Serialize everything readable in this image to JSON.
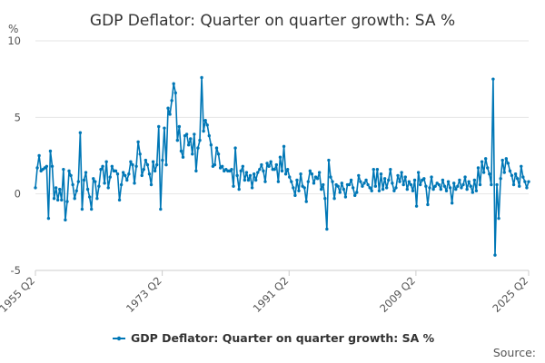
{
  "chart_data": {
    "type": "line",
    "title": "GDP Deflator: Quarter on quarter growth: SA %",
    "ylabel": "%",
    "xlabel": "",
    "ylim": [
      -5,
      10
    ],
    "y_ticks": [
      -5,
      0,
      5,
      10
    ],
    "x_ticks": [
      "1955 Q2",
      "1973 Q2",
      "1991 Q2",
      "2009 Q2",
      "2025 Q2"
    ],
    "grid": true,
    "legend_position": "bottom-center",
    "colors": {
      "series": "#0077b6",
      "grid": "#e6e6e6",
      "text": "#333333"
    },
    "series": [
      {
        "name": "GDP Deflator: Quarter on quarter growth: SA %",
        "start": "1955 Q2",
        "values": [
          0.4,
          1.7,
          2.5,
          1.5,
          1.6,
          1.7,
          1.8,
          -1.6,
          2.8,
          1.8,
          -0.3,
          0.4,
          -0.4,
          0.3,
          -0.4,
          1.6,
          -1.7,
          -0.5,
          1.5,
          1.2,
          0.6,
          -0.3,
          0.2,
          0.8,
          4.0,
          -1.0,
          0.9,
          1.4,
          0.3,
          -0.2,
          -1.0,
          1.0,
          0.8,
          -0.3,
          0.5,
          1.6,
          1.8,
          0.7,
          2.1,
          0.4,
          1.1,
          1.8,
          1.5,
          1.5,
          1.3,
          -0.4,
          0.6,
          1.4,
          1.2,
          0.9,
          1.3,
          2.1,
          1.9,
          0.7,
          1.8,
          3.4,
          2.6,
          1.2,
          1.6,
          2.2,
          1.9,
          1.3,
          0.6,
          2.1,
          1.5,
          1.9,
          4.4,
          -1.0,
          2.2,
          4.3,
          1.9,
          5.6,
          5.2,
          6.1,
          7.2,
          6.6,
          3.5,
          4.4,
          2.8,
          2.4,
          3.8,
          3.9,
          3.2,
          3.6,
          2.6,
          3.9,
          1.5,
          3.0,
          3.5,
          7.6,
          4.1,
          4.8,
          4.5,
          3.8,
          3.2,
          1.8,
          1.9,
          3.0,
          2.6,
          1.7,
          1.8,
          1.5,
          1.6,
          1.5,
          1.5,
          1.6,
          0.5,
          3.0,
          1.2,
          0.3,
          1.5,
          1.8,
          0.9,
          1.4,
          0.9,
          1.2,
          0.4,
          1.3,
          0.9,
          1.4,
          1.6,
          1.9,
          1.5,
          0.8,
          2.0,
          1.8,
          2.1,
          1.6,
          1.6,
          1.9,
          0.8,
          2.4,
          1.5,
          3.1,
          1.3,
          1.6,
          1.1,
          0.8,
          0.4,
          -0.1,
          0.9,
          0.2,
          1.3,
          0.5,
          0.4,
          -0.5,
          0.8,
          1.5,
          1.3,
          0.7,
          1.1,
          1.0,
          1.4,
          0.3,
          0.6,
          -0.3,
          -2.3,
          2.2,
          1.1,
          0.8,
          -0.3,
          0.6,
          0.5,
          0.1,
          0.7,
          0.3,
          -0.2,
          0.6,
          0.6,
          0.9,
          0.4,
          -0.1,
          0.1,
          1.2,
          0.8,
          0.5,
          0.7,
          0.9,
          0.6,
          0.4,
          0.2,
          1.6,
          0.5,
          1.6,
          0.2,
          1.3,
          0.3,
          1.0,
          0.4,
          0.9,
          1.6,
          0.7,
          0.2,
          0.4,
          1.2,
          0.8,
          1.4,
          0.6,
          1.1,
          0.3,
          0.8,
          0.6,
          0.2,
          0.9,
          -0.8,
          1.4,
          0.6,
          0.9,
          1.0,
          0.5,
          -0.7,
          0.4,
          1.1,
          0.3,
          0.5,
          0.7,
          0.6,
          0.3,
          0.9,
          0.5,
          0.2,
          0.8,
          0.4,
          -0.6,
          0.7,
          0.3,
          0.5,
          0.9,
          0.4,
          0.6,
          1.1,
          0.3,
          0.8,
          0.5,
          0.1,
          0.9,
          0.2,
          1.7,
          0.6,
          2.1,
          1.4,
          2.3,
          1.7,
          1.3,
          0.6,
          7.5,
          -4.0,
          0.6,
          -1.6,
          1.0,
          2.2,
          1.4,
          2.3,
          2.0,
          1.5,
          1.2,
          0.6,
          1.3,
          1.0,
          0.5,
          1.8,
          1.1,
          0.8,
          0.4,
          0.8
        ]
      }
    ],
    "source_label": "Source:"
  }
}
